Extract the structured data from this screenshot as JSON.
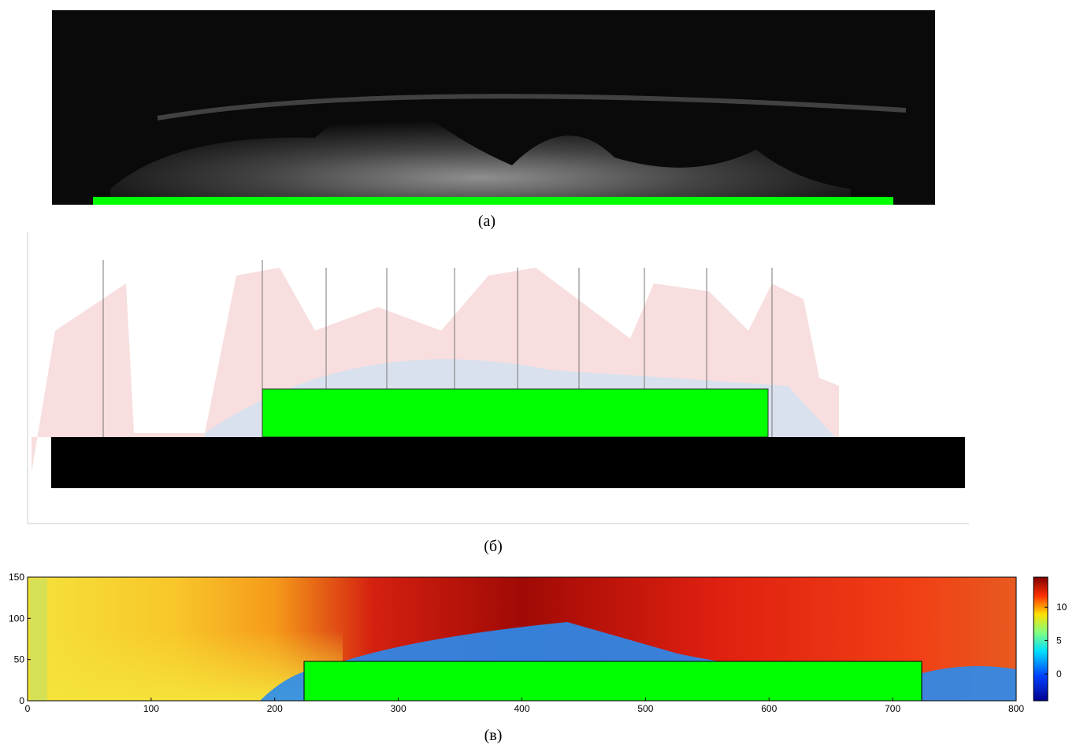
{
  "panels": [
    {
      "label": "(a)"
    },
    {
      "label": "(б)"
    },
    {
      "label": "(в)",
      "xlim": [
        0,
        800
      ],
      "xticks": [
        0,
        100,
        200,
        300,
        400,
        500,
        600,
        700,
        800
      ],
      "ylim": [
        0,
        150
      ],
      "yticks": [
        0,
        50,
        100,
        150
      ],
      "colorbar_lim": [
        -4,
        14.5
      ],
      "colorbar_ticks": [
        0,
        5,
        10
      ]
    }
  ]
}
